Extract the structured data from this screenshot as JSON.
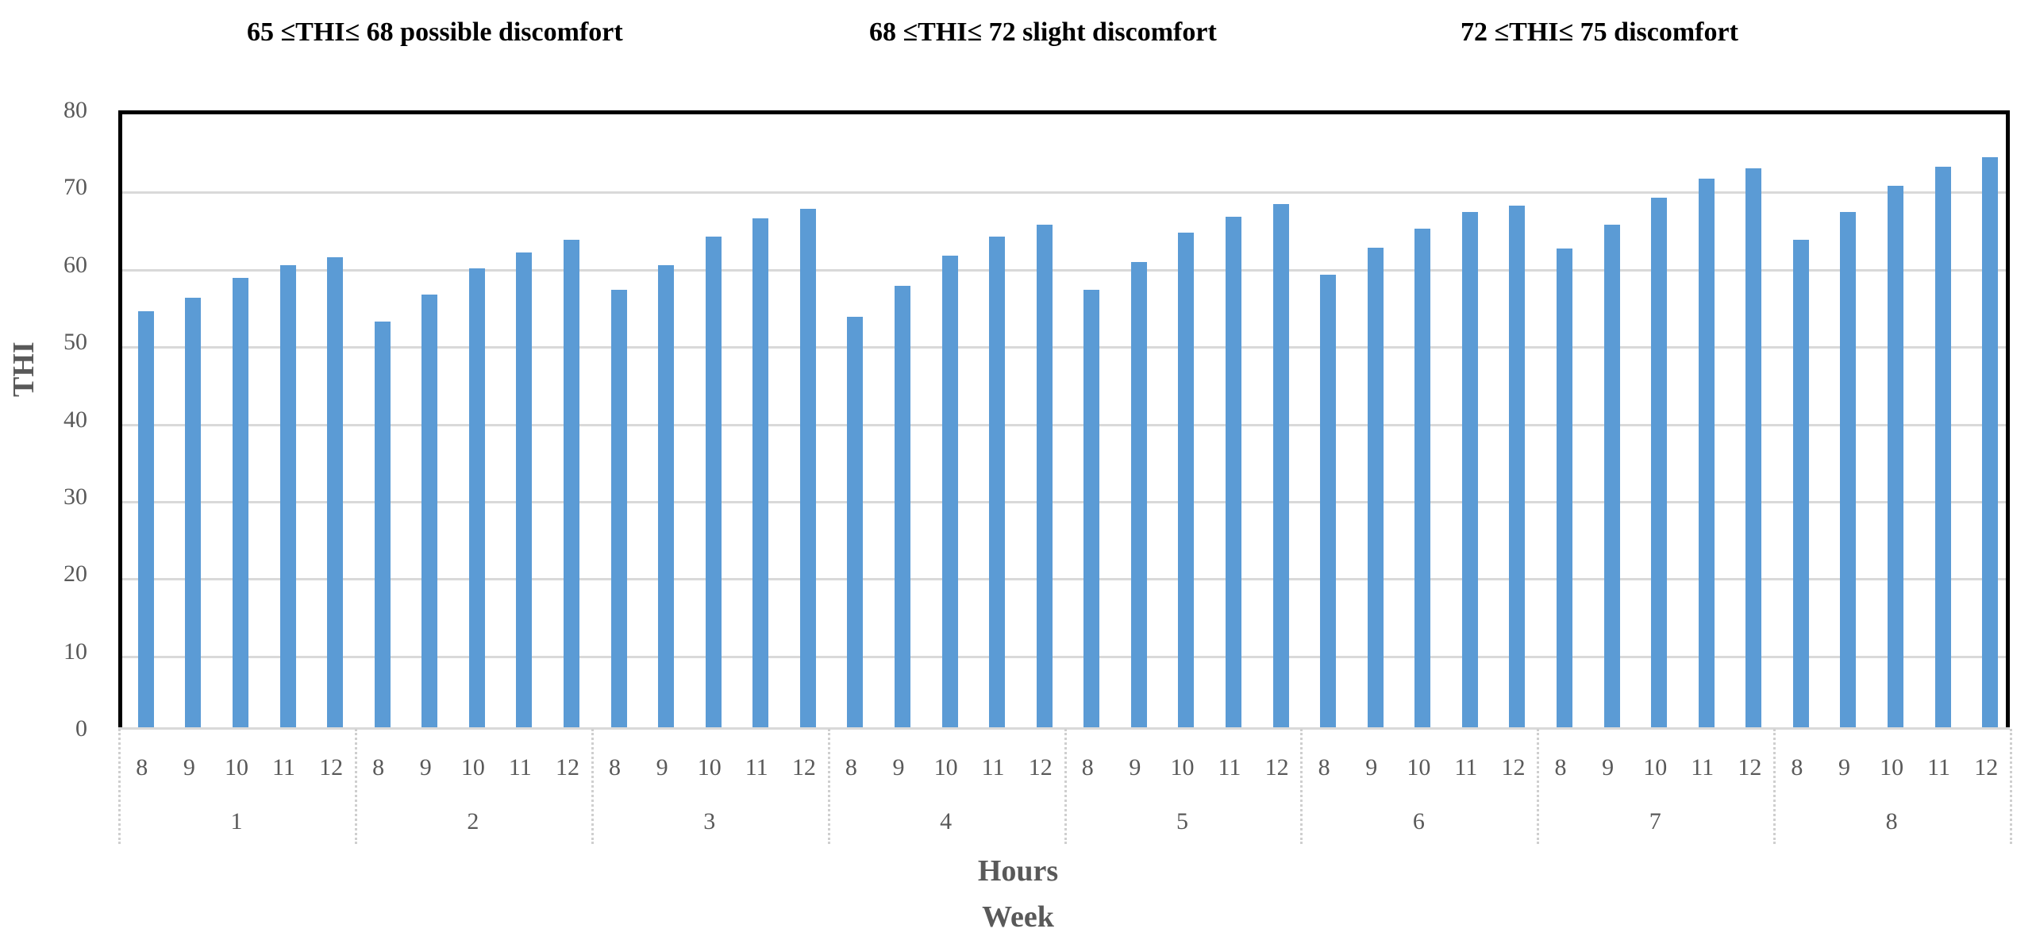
{
  "header": {
    "bands": [
      {
        "label": "65 ≤THI≤ 68 possible discomfort"
      },
      {
        "label": "68 ≤THI≤ 72 slight discomfort"
      },
      {
        "label": "72 ≤THI≤ 75 discomfort"
      }
    ]
  },
  "axes": {
    "ylabel": "THI",
    "xlabel_inner": "Hours",
    "xlabel_outer": "Week",
    "yticks": [
      "0",
      "10",
      "20",
      "30",
      "40",
      "50",
      "60",
      "70",
      "80"
    ],
    "hours": [
      "8",
      "9",
      "10",
      "11",
      "12"
    ],
    "weeks": [
      "1",
      "2",
      "3",
      "4",
      "5",
      "6",
      "7",
      "8"
    ]
  },
  "colors": {
    "bar": "#5b9bd5",
    "grid": "#d9d9d9",
    "text": "#595959"
  },
  "chart_data": {
    "type": "bar",
    "title": "",
    "annotations": [
      "65 ≤THI≤ 68 possible discomfort",
      "68 ≤THI≤ 72 slight discomfort",
      "72 ≤THI≤ 75 discomfort"
    ],
    "xlabel": "Hours / Week",
    "ylabel": "THI",
    "ylim": [
      0,
      80
    ],
    "yticks": [
      0,
      10,
      20,
      30,
      40,
      50,
      60,
      70,
      80
    ],
    "grid": true,
    "legend": "none",
    "categories": [
      "W1-8",
      "W1-9",
      "W1-10",
      "W1-11",
      "W1-12",
      "W2-8",
      "W2-9",
      "W2-10",
      "W2-11",
      "W2-12",
      "W3-8",
      "W3-9",
      "W3-10",
      "W3-11",
      "W3-12",
      "W4-8",
      "W4-9",
      "W4-10",
      "W4-11",
      "W4-12",
      "W5-8",
      "W5-9",
      "W5-10",
      "W5-11",
      "W5-12",
      "W6-8",
      "W6-9",
      "W6-10",
      "W6-11",
      "W6-12",
      "W7-8",
      "W7-9",
      "W7-10",
      "W7-11",
      "W7-12",
      "W8-8",
      "W8-9",
      "W8-10",
      "W8-11",
      "W8-12"
    ],
    "groups": [
      {
        "week": "1",
        "hours": [
          "8",
          "9",
          "10",
          "11",
          "12"
        ],
        "values": [
          54.0,
          55.8,
          58.3,
          60.0,
          61.0
        ]
      },
      {
        "week": "2",
        "hours": [
          "8",
          "9",
          "10",
          "11",
          "12"
        ],
        "values": [
          52.7,
          56.2,
          59.6,
          61.6,
          63.3
        ]
      },
      {
        "week": "3",
        "hours": [
          "8",
          "9",
          "10",
          "11",
          "12"
        ],
        "values": [
          56.8,
          60.0,
          63.7,
          66.0,
          67.3
        ]
      },
      {
        "week": "4",
        "hours": [
          "8",
          "9",
          "10",
          "11",
          "12"
        ],
        "values": [
          53.3,
          57.3,
          61.2,
          63.7,
          65.2
        ]
      },
      {
        "week": "5",
        "hours": [
          "8",
          "9",
          "10",
          "11",
          "12"
        ],
        "values": [
          56.8,
          60.4,
          64.2,
          66.2,
          67.9
        ]
      },
      {
        "week": "6",
        "hours": [
          "8",
          "9",
          "10",
          "11",
          "12"
        ],
        "values": [
          58.7,
          62.2,
          64.7,
          66.9,
          67.7
        ]
      },
      {
        "week": "7",
        "hours": [
          "8",
          "9",
          "10",
          "11",
          "12"
        ],
        "values": [
          62.1,
          65.2,
          68.7,
          71.2,
          72.5
        ]
      },
      {
        "week": "8",
        "hours": [
          "8",
          "9",
          "10",
          "11",
          "12"
        ],
        "values": [
          63.3,
          66.9,
          70.2,
          72.7,
          73.9
        ]
      }
    ],
    "values": [
      54.0,
      55.8,
      58.3,
      60.0,
      61.0,
      52.7,
      56.2,
      59.6,
      61.6,
      63.3,
      56.8,
      60.0,
      63.7,
      66.0,
      67.3,
      53.3,
      57.3,
      61.2,
      63.7,
      65.2,
      56.8,
      60.4,
      64.2,
      66.2,
      67.9,
      58.7,
      62.2,
      64.7,
      66.9,
      67.7,
      62.1,
      65.2,
      68.7,
      71.2,
      72.5,
      63.3,
      66.9,
      70.2,
      72.7,
      73.9
    ]
  }
}
